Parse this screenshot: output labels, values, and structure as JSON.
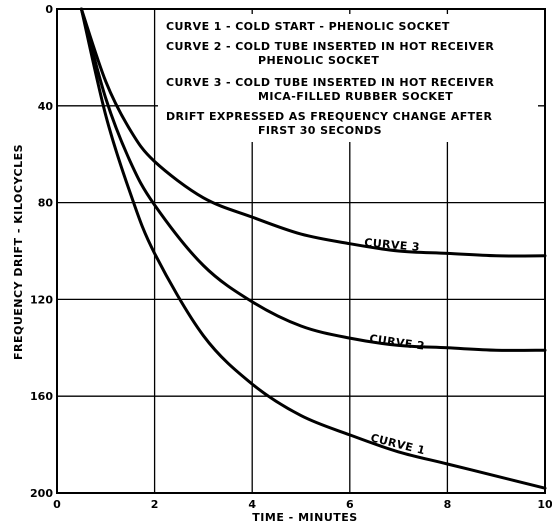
{
  "chart_data": {
    "type": "line",
    "xlabel": "TIME - MINUTES",
    "ylabel": "FREQUENCY DRIFT - KILOCYCLES",
    "xlim": [
      0,
      10
    ],
    "ylim": [
      0,
      200
    ],
    "y_inverted": true,
    "grid": true,
    "x_ticks": [
      "0",
      "2",
      "4",
      "6",
      "8",
      "10"
    ],
    "y_ticks": [
      "0",
      "40",
      "80",
      "120",
      "160",
      "200"
    ],
    "legend_lines": [
      "CURVE 1 - COLD START - PHENOLIC SOCKET",
      "CURVE 2 - COLD TUBE INSERTED IN HOT RECEIVER",
      "PHENOLIC SOCKET",
      "CURVE 3 - COLD TUBE INSERTED IN HOT RECEIVER",
      "MICA-FILLED RUBBER SOCKET",
      "DRIFT EXPRESSED AS FREQUENCY CHANGE AFTER",
      "FIRST 30 SECONDS"
    ],
    "series": [
      {
        "name": "CURVE 1",
        "x": [
          0.5,
          1,
          1.5,
          2,
          3,
          4,
          5,
          6,
          7,
          8,
          9,
          10
        ],
        "values": [
          0,
          44,
          76,
          101,
          135,
          155,
          168,
          176,
          183,
          188,
          193,
          198
        ]
      },
      {
        "name": "CURVE 2",
        "x": [
          0.5,
          1,
          1.5,
          2,
          3,
          4,
          5,
          6,
          7,
          8,
          9,
          10
        ],
        "values": [
          0,
          37,
          63,
          81,
          106,
          121,
          131,
          136,
          139,
          140,
          141,
          141
        ]
      },
      {
        "name": "CURVE 3",
        "x": [
          0.5,
          1,
          1.5,
          2,
          3,
          4,
          5,
          6,
          7,
          8,
          9,
          10
        ],
        "values": [
          0,
          30,
          50,
          63,
          78,
          86,
          93,
          97,
          100,
          101,
          102,
          102
        ]
      }
    ]
  }
}
